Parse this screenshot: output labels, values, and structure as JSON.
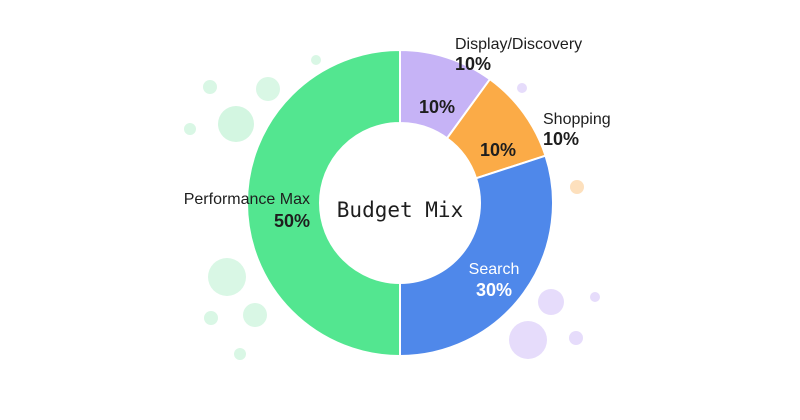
{
  "chart_data": {
    "type": "donut",
    "title": "Budget Mix",
    "categories": [
      "Display/Discovery",
      "Shopping",
      "Search",
      "Performance Max"
    ],
    "values": [
      10,
      10,
      30,
      50
    ],
    "value_labels": [
      "10%",
      "10%",
      "30%",
      "50%"
    ],
    "colors": [
      "#c6b3f6",
      "#fbab47",
      "#4f88ea",
      "#53e690"
    ]
  }
}
